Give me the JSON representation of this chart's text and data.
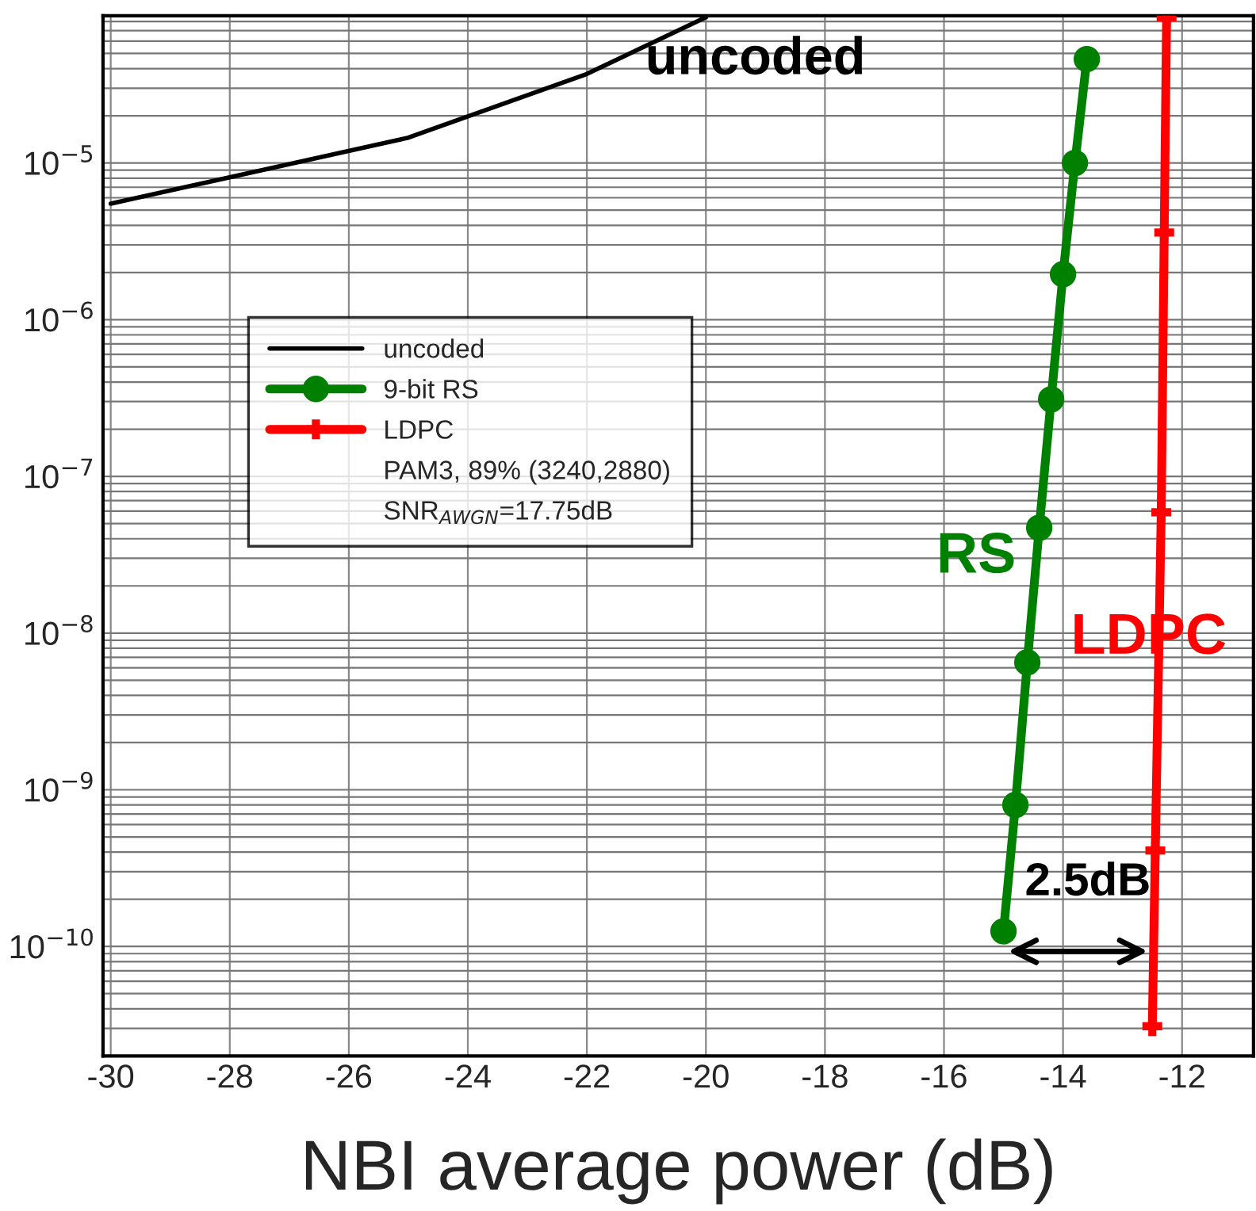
{
  "chart_data": {
    "type": "line",
    "xlabel": "NBI average power (dB)",
    "series": [
      {
        "name": "uncoded",
        "color": "#000000",
        "marker": "none",
        "x": [
          -30,
          -25,
          -22,
          -20
        ],
        "values": [
          5.5e-06,
          1.45e-05,
          3.7e-05,
          8.5e-05
        ]
      },
      {
        "name": "9-bit RS",
        "color": "#008000",
        "marker": "circle",
        "x": [
          -13.6,
          -13.8,
          -14.0,
          -14.2,
          -14.4,
          -14.6,
          -14.8,
          -15.0
        ],
        "values": [
          4.6e-05,
          1e-05,
          1.95e-06,
          3.1e-07,
          4.7e-08,
          6.5e-09,
          8e-10,
          1.25e-10
        ]
      },
      {
        "name": "LDPC",
        "color": "#ff0000",
        "marker": "cross",
        "x": [
          -12.26,
          -12.3,
          -12.35,
          -12.45,
          -12.5
        ],
        "values": [
          8.5e-05,
          3.6e-06,
          5.9e-08,
          4.1e-10,
          3.1e-11
        ]
      }
    ],
    "annotations": [
      "PAM3, 89% (3240,2880)",
      "SNR$_{AWGN}$=17.75dB",
      "uncoded",
      "RS",
      "LDPC",
      "2.5dB"
    ],
    "log": "y",
    "xlim": [
      -30.13,
      -10.8
    ],
    "ylim": [
      2e-11,
      8.7e-05
    ],
    "xticks": [
      -30,
      -28,
      -26,
      -24,
      -22,
      -20,
      -18,
      -16,
      -14,
      -12
    ],
    "yticks": [
      {
        "value": 1e-10,
        "label": "10$^{−10}$"
      },
      {
        "value": 1e-09,
        "label": "10$^{−9}$"
      },
      {
        "value": 1e-08,
        "label": "10$^{−8}$"
      },
      {
        "value": 1e-07,
        "label": "10$^{−7}$"
      },
      {
        "value": 1e-06,
        "label": "10$^{−6}$"
      },
      {
        "value": 1e-05,
        "label": "10$^{−5}$"
      }
    ],
    "grid": true,
    "legend": "left"
  }
}
